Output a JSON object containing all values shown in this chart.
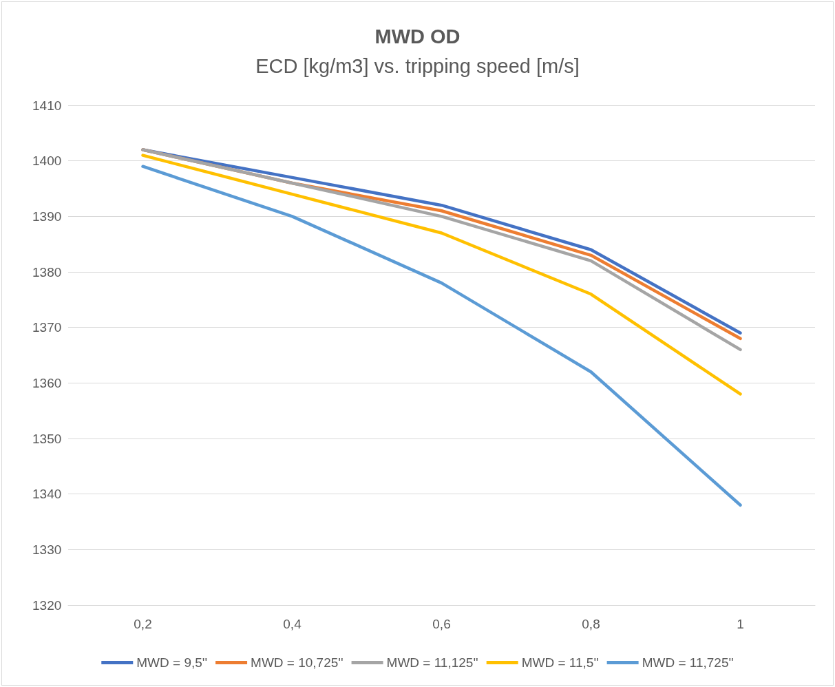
{
  "chart_data": {
    "type": "line",
    "title": "MWD OD",
    "subtitle": "ECD [kg/m3] vs. tripping speed [m/s]",
    "categories": [
      "0,2",
      "0,4",
      "0,6",
      "0,8",
      "1"
    ],
    "series": [
      {
        "name": "MWD = 9,5''",
        "color": "#4472c4",
        "values": [
          1402,
          1397,
          1392,
          1384,
          1369
        ]
      },
      {
        "name": "MWD = 10,725''",
        "color": "#ed7d31",
        "values": [
          1402,
          1396,
          1391,
          1383,
          1368
        ]
      },
      {
        "name": "MWD = 11,125''",
        "color": "#a5a5a5",
        "values": [
          1402,
          1396,
          1390,
          1382,
          1366
        ]
      },
      {
        "name": "MWD = 11,5''",
        "color": "#ffc000",
        "values": [
          1401,
          1394,
          1387,
          1376,
          1358
        ]
      },
      {
        "name": "MWD = 11,725''",
        "color": "#5b9bd5",
        "values": [
          1399,
          1390,
          1378,
          1362,
          1338
        ]
      }
    ],
    "ylim": [
      1320,
      1410
    ],
    "yticks": [
      1320,
      1330,
      1340,
      1350,
      1360,
      1370,
      1380,
      1390,
      1400,
      1410
    ],
    "grid": "y",
    "legend": "bottom",
    "marker": "none",
    "line_style": "solid"
  }
}
